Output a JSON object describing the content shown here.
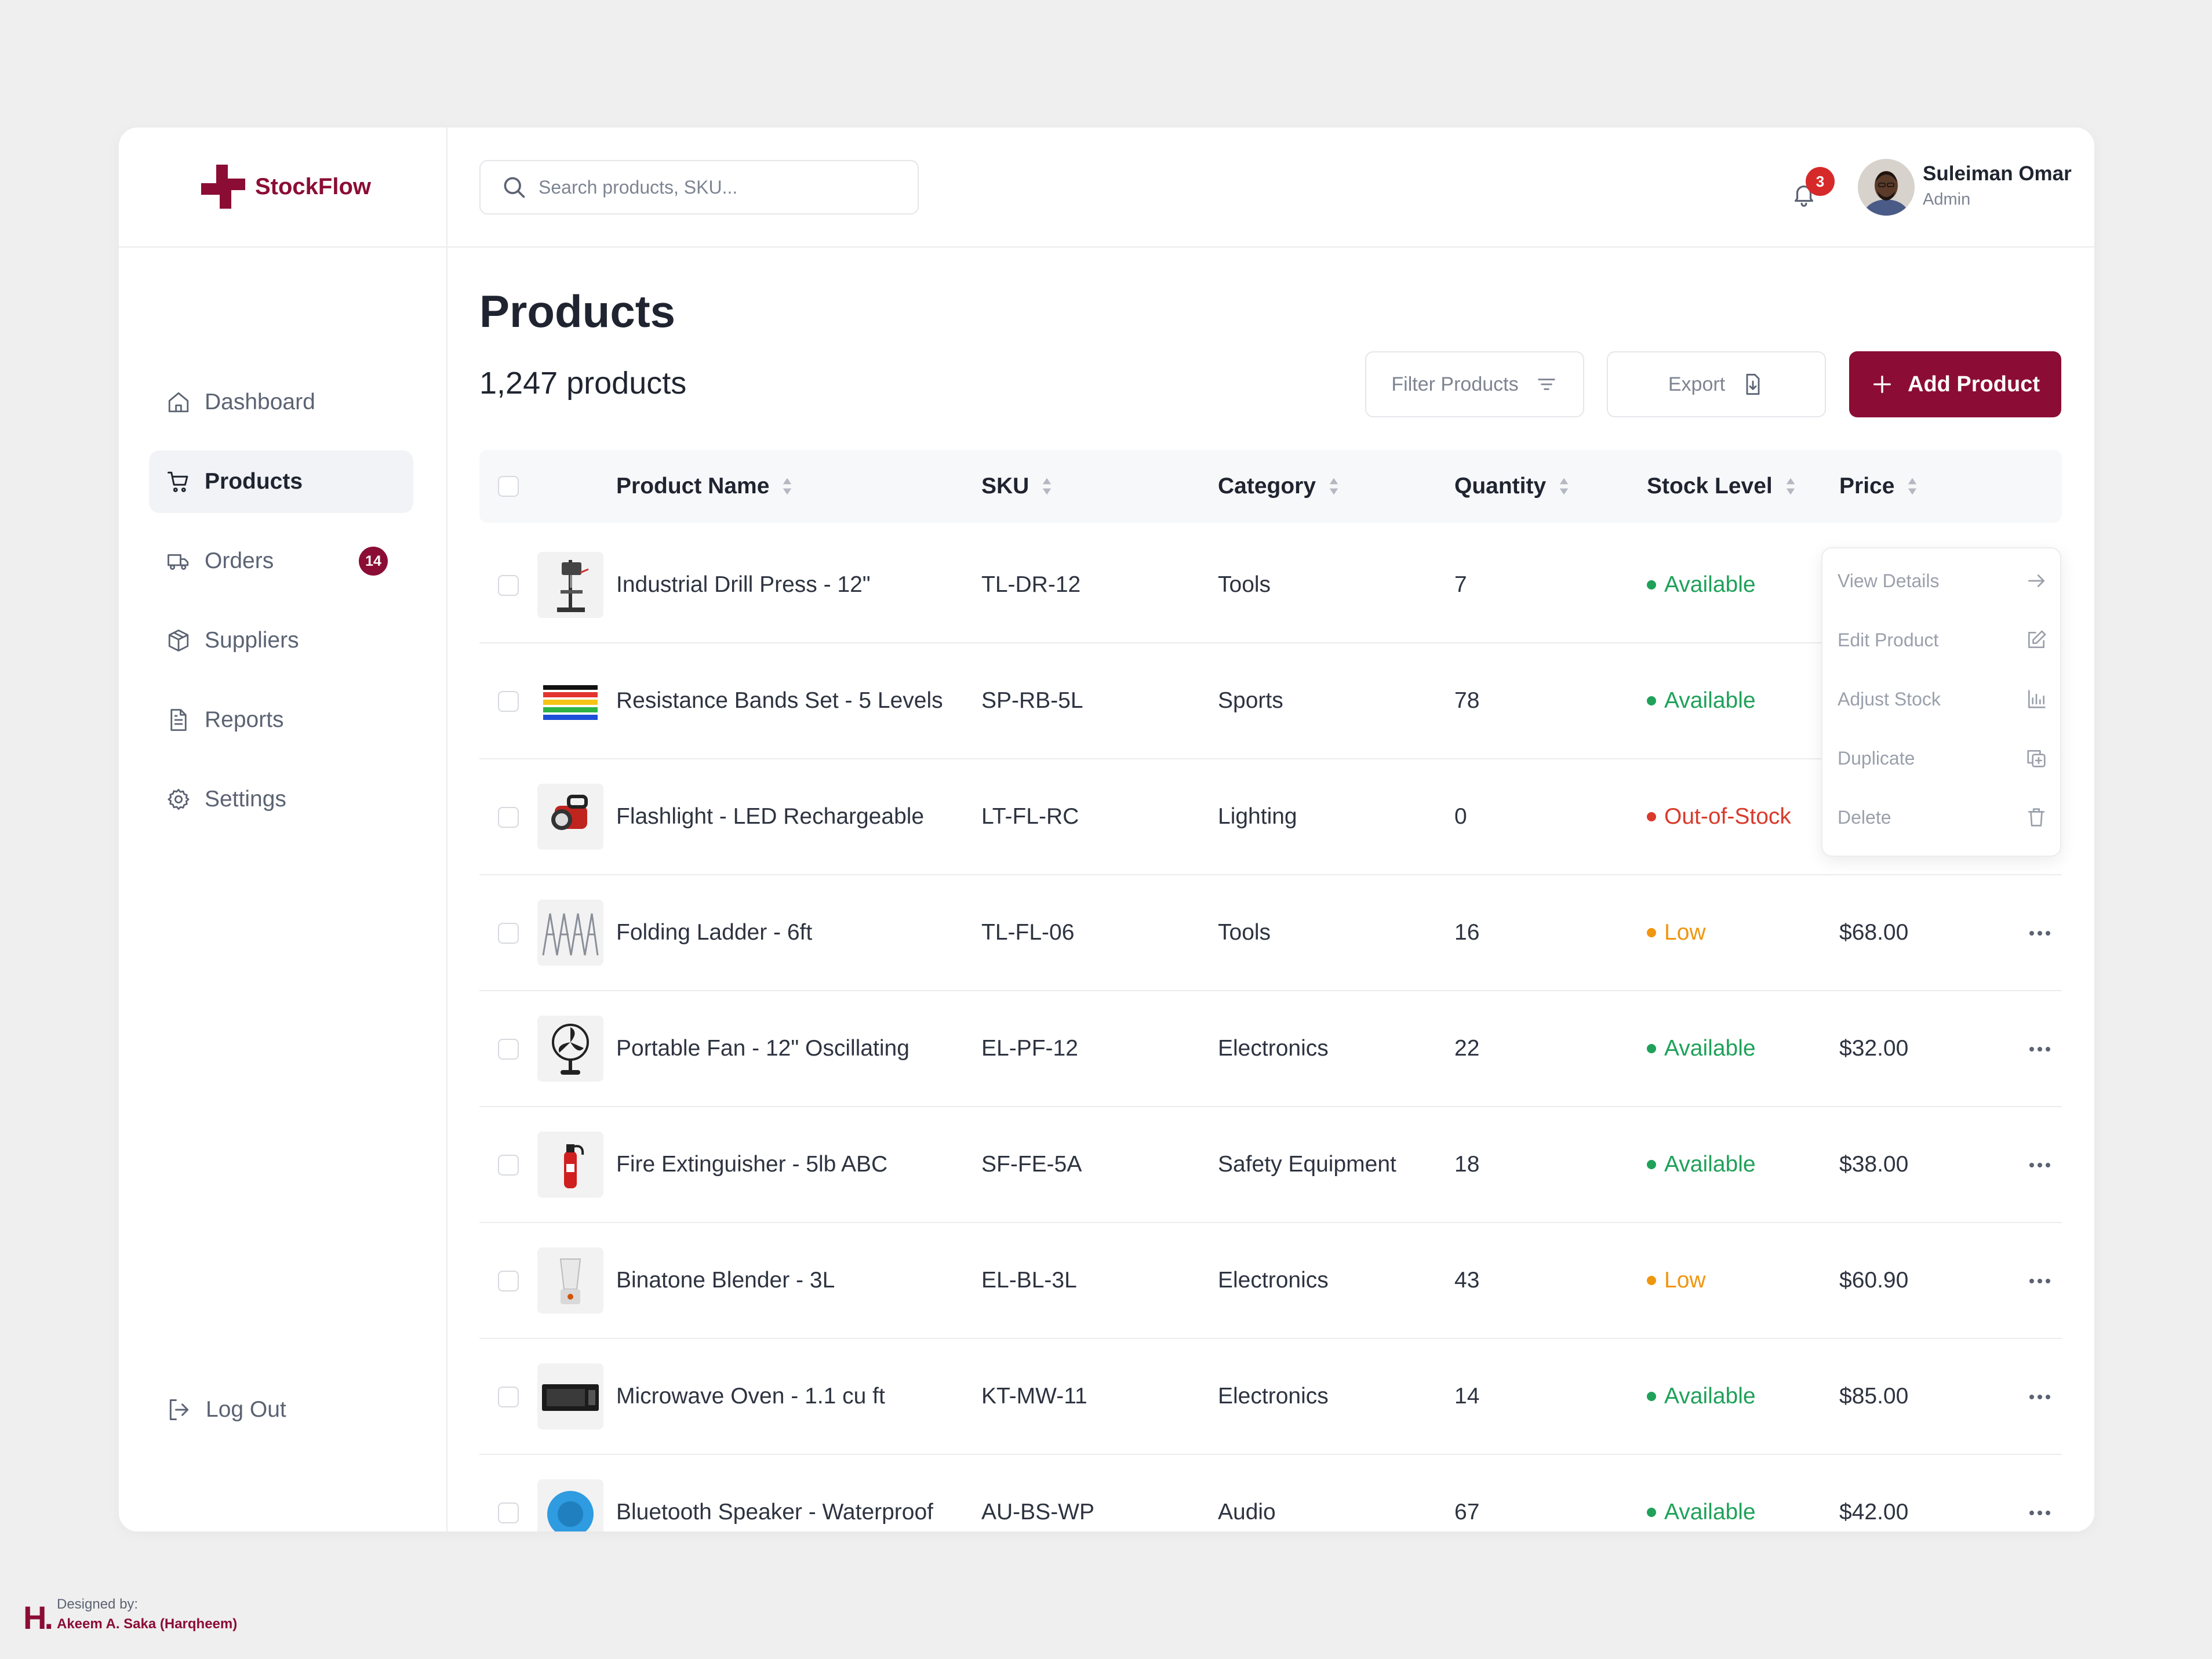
{
  "app": {
    "name": "StockFlow",
    "brand_color": "#8b0d35"
  },
  "sidebar": {
    "items": [
      {
        "label": "Dashboard",
        "icon": "home-icon"
      },
      {
        "label": "Products",
        "icon": "cart-icon",
        "active": true
      },
      {
        "label": "Orders",
        "icon": "truck-icon",
        "badge": "14"
      },
      {
        "label": "Suppliers",
        "icon": "box-icon"
      },
      {
        "label": "Reports",
        "icon": "document-icon"
      },
      {
        "label": "Settings",
        "icon": "gear-icon"
      }
    ],
    "logout_label": "Log Out"
  },
  "header": {
    "search_placeholder": "Search products, SKU...",
    "notifications_count": "3",
    "user": {
      "name": "Suleiman Omar",
      "role": "Admin"
    }
  },
  "page": {
    "title": "Products",
    "count_label": "1,247 products",
    "filter_label": "Filter Products",
    "export_label": "Export",
    "add_label": "Add Product"
  },
  "table": {
    "columns": [
      "Product Name",
      "SKU",
      "Category",
      "Quantity",
      "Stock Level",
      "Price"
    ],
    "rows": [
      {
        "name": "Industrial Drill Press - 12\"",
        "sku": "TL-DR-12",
        "category": "Tools",
        "quantity": "7",
        "stock": "Available",
        "price": ""
      },
      {
        "name": "Resistance Bands Set - 5 Levels",
        "sku": "SP-RB-5L",
        "category": "Sports",
        "quantity": "78",
        "stock": "Available",
        "price": ""
      },
      {
        "name": "Flashlight - LED Rechargeable",
        "sku": "LT-FL-RC",
        "category": "Lighting",
        "quantity": "0",
        "stock": "Out-of-Stock",
        "price": ""
      },
      {
        "name": "Folding Ladder - 6ft",
        "sku": "TL-FL-06",
        "category": "Tools",
        "quantity": "16",
        "stock": "Low",
        "price": "$68.00"
      },
      {
        "name": "Portable Fan - 12\" Oscillating",
        "sku": "EL-PF-12",
        "category": "Electronics",
        "quantity": "22",
        "stock": "Available",
        "price": "$32.00"
      },
      {
        "name": "Fire Extinguisher - 5lb ABC",
        "sku": "SF-FE-5A",
        "category": "Safety Equipment",
        "quantity": "18",
        "stock": "Available",
        "price": "$38.00"
      },
      {
        "name": "Binatone Blender - 3L",
        "sku": "EL-BL-3L",
        "category": "Electronics",
        "quantity": "43",
        "stock": "Low",
        "price": "$60.90"
      },
      {
        "name": "Microwave Oven - 1.1 cu ft",
        "sku": "KT-MW-11",
        "category": "Electronics",
        "quantity": "14",
        "stock": "Available",
        "price": "$85.00"
      },
      {
        "name": "Bluetooth Speaker - Waterproof",
        "sku": "AU-BS-WP",
        "category": "Audio",
        "quantity": "67",
        "stock": "Available",
        "price": "$42.00"
      }
    ]
  },
  "row_menu": {
    "items": [
      {
        "label": "View Details",
        "icon": "arrow-right-icon"
      },
      {
        "label": "Edit Product",
        "icon": "edit-icon"
      },
      {
        "label": "Adjust Stock",
        "icon": "chart-icon"
      },
      {
        "label": "Duplicate",
        "icon": "duplicate-icon"
      },
      {
        "label": "Delete",
        "icon": "trash-icon"
      }
    ]
  },
  "status_colors": {
    "Available": "#1fa15a",
    "Out-of-Stock": "#d93a2b",
    "Low": "#f0960e"
  },
  "credit": {
    "label": "Designed by:",
    "name": "Akeem A. Saka (Harqheem)",
    "logo": "H."
  }
}
